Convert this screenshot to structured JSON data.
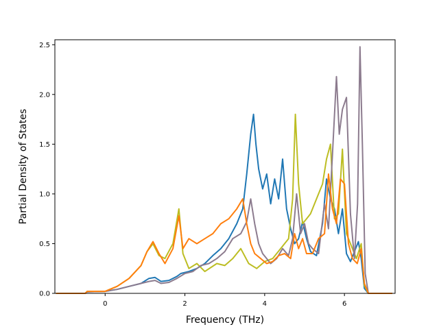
{
  "chart_data": {
    "type": "line",
    "title": "",
    "xlabel": "Frequency (THz)",
    "ylabel": "Partial Density of States",
    "xlim": [
      -1.26,
      7.27
    ],
    "ylim": [
      0,
      2.55
    ],
    "x_ticks": [
      0,
      2,
      4,
      6
    ],
    "x_tick_labels": [
      "0",
      "2",
      "4",
      "6"
    ],
    "y_ticks": [
      0,
      0.5,
      1.0,
      1.5,
      2.0,
      2.5
    ],
    "y_tick_labels": [
      "0.0",
      "0.5",
      "1.0",
      "1.5",
      "2.0",
      "2.5"
    ],
    "grid": false,
    "legend": "none",
    "series": [
      {
        "color": "#1f77b4",
        "x": [
          -1.23,
          -0.5,
          -0.45,
          0.0,
          0.3,
          0.6,
          0.9,
          1.1,
          1.25,
          1.4,
          1.6,
          1.8,
          1.9,
          2.1,
          2.3,
          2.5,
          2.7,
          2.9,
          3.1,
          3.3,
          3.45,
          3.55,
          3.65,
          3.72,
          3.78,
          3.85,
          3.95,
          4.05,
          4.15,
          4.25,
          4.35,
          4.45,
          4.55,
          4.65,
          4.75,
          4.85,
          4.95,
          5.05,
          5.15,
          5.3,
          5.45,
          5.55,
          5.65,
          5.75,
          5.85,
          5.95,
          6.05,
          6.15,
          6.25,
          6.35,
          6.42,
          6.5,
          6.6,
          7.2
        ],
        "y": [
          0.0,
          0.0,
          0.015,
          0.02,
          0.04,
          0.07,
          0.1,
          0.15,
          0.16,
          0.12,
          0.13,
          0.17,
          0.2,
          0.22,
          0.25,
          0.3,
          0.38,
          0.45,
          0.55,
          0.7,
          0.85,
          1.2,
          1.6,
          1.8,
          1.5,
          1.25,
          1.05,
          1.2,
          0.9,
          1.15,
          0.95,
          1.35,
          0.85,
          0.65,
          0.5,
          0.55,
          0.72,
          0.55,
          0.42,
          0.38,
          0.7,
          1.15,
          0.95,
          0.85,
          0.6,
          0.85,
          0.4,
          0.32,
          0.42,
          0.52,
          0.35,
          0.05,
          0.0,
          0.0
        ]
      },
      {
        "color": "#bcbd22",
        "x": [
          -1.23,
          -0.5,
          -0.45,
          0.0,
          0.3,
          0.6,
          0.9,
          1.05,
          1.2,
          1.35,
          1.5,
          1.7,
          1.85,
          1.95,
          2.1,
          2.3,
          2.5,
          2.8,
          3.0,
          3.2,
          3.4,
          3.6,
          3.8,
          4.0,
          4.2,
          4.4,
          4.6,
          4.7,
          4.77,
          4.85,
          4.95,
          5.05,
          5.15,
          5.3,
          5.45,
          5.55,
          5.65,
          5.75,
          5.85,
          5.95,
          6.05,
          6.15,
          6.3,
          6.42,
          6.5,
          6.6,
          7.2
        ],
        "y": [
          0.0,
          0.0,
          0.02,
          0.02,
          0.07,
          0.15,
          0.28,
          0.42,
          0.5,
          0.38,
          0.35,
          0.5,
          0.85,
          0.4,
          0.25,
          0.3,
          0.22,
          0.3,
          0.28,
          0.35,
          0.45,
          0.3,
          0.25,
          0.32,
          0.35,
          0.45,
          0.55,
          0.95,
          1.8,
          1.1,
          0.7,
          0.75,
          0.8,
          0.95,
          1.1,
          1.35,
          1.5,
          0.75,
          0.8,
          1.45,
          0.6,
          0.5,
          0.35,
          0.5,
          0.08,
          0.0,
          0.0
        ]
      },
      {
        "color": "#8c7b8e",
        "x": [
          -1.23,
          -0.5,
          -0.45,
          0.0,
          0.3,
          0.6,
          0.9,
          1.1,
          1.25,
          1.4,
          1.6,
          1.8,
          2.0,
          2.2,
          2.4,
          2.6,
          2.8,
          3.0,
          3.2,
          3.4,
          3.55,
          3.65,
          3.75,
          3.85,
          3.95,
          4.05,
          4.15,
          4.3,
          4.45,
          4.6,
          4.7,
          4.8,
          4.9,
          5.0,
          5.1,
          5.2,
          5.35,
          5.5,
          5.6,
          5.7,
          5.8,
          5.87,
          5.95,
          6.05,
          6.15,
          6.25,
          6.33,
          6.39,
          6.45,
          6.52,
          6.6,
          7.2
        ],
        "y": [
          0.0,
          0.0,
          0.015,
          0.02,
          0.04,
          0.07,
          0.1,
          0.12,
          0.13,
          0.1,
          0.11,
          0.15,
          0.2,
          0.22,
          0.28,
          0.3,
          0.35,
          0.42,
          0.55,
          0.6,
          0.72,
          0.95,
          0.7,
          0.5,
          0.4,
          0.35,
          0.3,
          0.35,
          0.45,
          0.38,
          0.55,
          1.0,
          0.6,
          0.7,
          0.5,
          0.45,
          0.4,
          0.9,
          0.65,
          1.4,
          2.18,
          1.6,
          1.85,
          1.97,
          0.8,
          0.35,
          0.9,
          2.48,
          1.5,
          0.2,
          0.0,
          0.0
        ]
      },
      {
        "color": "#ff7f0e",
        "x": [
          -1.23,
          -0.5,
          -0.45,
          0.0,
          0.3,
          0.6,
          0.9,
          1.05,
          1.2,
          1.35,
          1.5,
          1.7,
          1.85,
          1.95,
          2.1,
          2.3,
          2.5,
          2.7,
          2.9,
          3.1,
          3.3,
          3.45,
          3.55,
          3.65,
          3.75,
          3.9,
          4.05,
          4.2,
          4.35,
          4.5,
          4.65,
          4.75,
          4.85,
          4.95,
          5.05,
          5.2,
          5.35,
          5.5,
          5.6,
          5.7,
          5.8,
          5.9,
          6.0,
          6.1,
          6.2,
          6.32,
          6.42,
          6.5,
          6.6,
          7.2
        ],
        "y": [
          0.0,
          0.0,
          0.02,
          0.02,
          0.07,
          0.15,
          0.28,
          0.42,
          0.52,
          0.4,
          0.3,
          0.45,
          0.78,
          0.45,
          0.55,
          0.5,
          0.55,
          0.6,
          0.7,
          0.75,
          0.85,
          0.95,
          0.7,
          0.5,
          0.4,
          0.35,
          0.3,
          0.32,
          0.38,
          0.4,
          0.35,
          0.6,
          0.45,
          0.55,
          0.4,
          0.4,
          0.55,
          0.6,
          1.2,
          0.85,
          0.7,
          1.15,
          1.1,
          0.5,
          0.35,
          0.3,
          0.45,
          0.1,
          0.0,
          0.0
        ]
      }
    ]
  }
}
